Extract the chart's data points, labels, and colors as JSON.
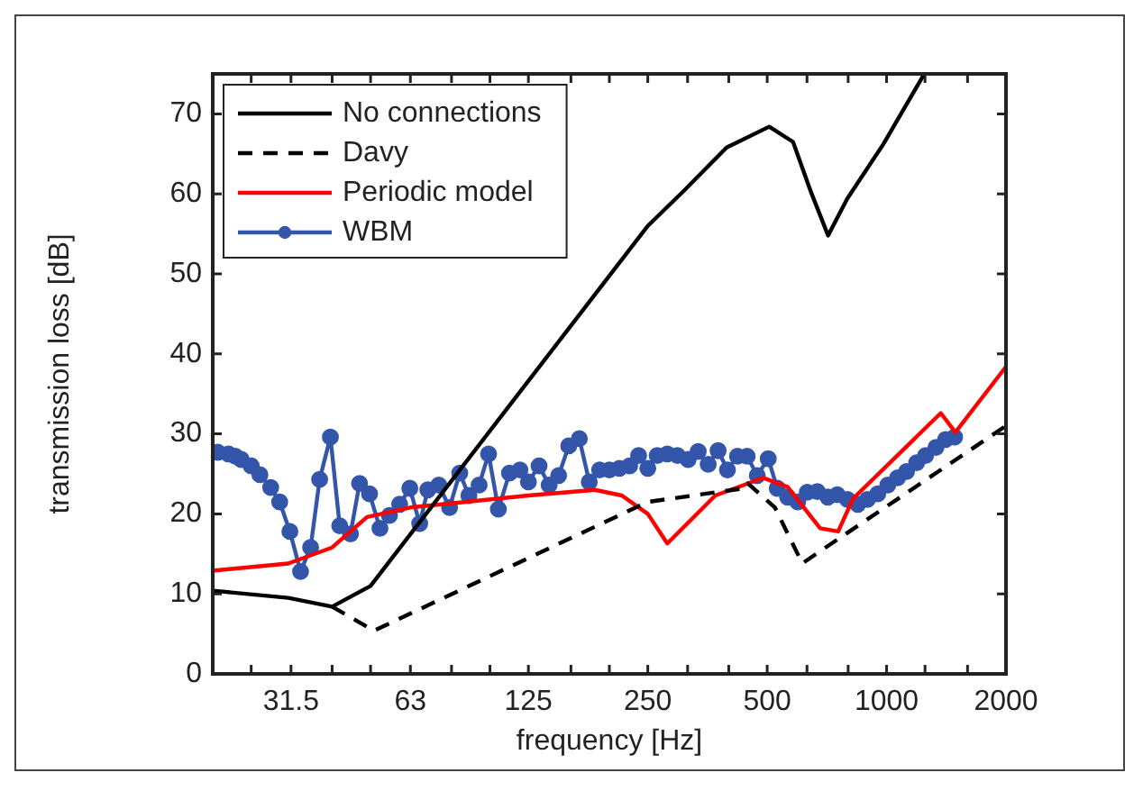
{
  "chart_data": {
    "type": "line",
    "xlabel": "frequency [Hz]",
    "ylabel": "transmission loss [dB]",
    "log": "x",
    "xlim": [
      20,
      2000
    ],
    "ylim": [
      0,
      75
    ],
    "xticks": [
      {
        "value": 25,
        "label": null
      },
      {
        "value": 31.5,
        "label": "31.5"
      },
      {
        "value": 40,
        "label": null
      },
      {
        "value": 50,
        "label": null
      },
      {
        "value": 63,
        "label": "63"
      },
      {
        "value": 80,
        "label": null
      },
      {
        "value": 100,
        "label": null
      },
      {
        "value": 125,
        "label": "125"
      },
      {
        "value": 160,
        "label": null
      },
      {
        "value": 200,
        "label": null
      },
      {
        "value": 250,
        "label": "250"
      },
      {
        "value": 315,
        "label": null
      },
      {
        "value": 400,
        "label": null
      },
      {
        "value": 500,
        "label": "500"
      },
      {
        "value": 630,
        "label": null
      },
      {
        "value": 800,
        "label": null
      },
      {
        "value": 1000,
        "label": "1000"
      },
      {
        "value": 1250,
        "label": null
      },
      {
        "value": 1600,
        "label": null
      },
      {
        "value": 2000,
        "label": "2000"
      }
    ],
    "yticks": [
      0,
      10,
      20,
      30,
      40,
      50,
      60,
      70
    ],
    "grid": false,
    "legend": "top left",
    "series": [
      {
        "name": "No connections",
        "color": "#000000",
        "line_style": "solid",
        "marker": "none",
        "x": [
          20,
          31,
          40,
          50,
          250,
          310,
          395,
          506,
          581,
          645,
          712,
          796,
          981,
          1245
        ],
        "values": [
          10.4,
          9.5,
          8.4,
          11.0,
          56,
          60.5,
          65.8,
          68.4,
          66.5,
          60.2,
          54.8,
          59.4,
          66.2,
          75
        ]
      },
      {
        "name": "Davy",
        "color": "#000000",
        "line_style": "dashed",
        "marker": "none",
        "x": [
          40,
          51,
          250,
          439,
          447,
          523,
          613,
          669,
          2000
        ],
        "values": [
          8.4,
          5.4,
          21.5,
          23.2,
          23.8,
          20.8,
          13.8,
          15.1,
          31
        ]
      },
      {
        "name": "Periodic model",
        "color": "#ff0000",
        "line_style": "solid",
        "marker": "none",
        "x": [
          20,
          31,
          40,
          49,
          63,
          125,
          184,
          215,
          250,
          280,
          370,
          488,
          562,
          680,
          755,
          823,
          1370,
          1491,
          2000
        ],
        "values": [
          12.9,
          13.8,
          15.8,
          19.6,
          20.8,
          22.3,
          23.0,
          22.3,
          20.0,
          16.3,
          22.3,
          24.5,
          23.4,
          18.2,
          17.8,
          21.9,
          32.6,
          30.2,
          38.4
        ]
      },
      {
        "name": "WBM",
        "color": "#3355aa",
        "line_style": "solid",
        "marker": "circle",
        "x": [
          20.6,
          21.9,
          22.8,
          23.6,
          25.0,
          26.3,
          28.0,
          29.5,
          31.3,
          33.3,
          35.3,
          37.2,
          39.6,
          41.8,
          44.5,
          46.9,
          49.7,
          52.8,
          55.8,
          59.2,
          62.8,
          66.5,
          69.7,
          74.3,
          79.1,
          83.9,
          88.5,
          93.9,
          99.2,
          105,
          112,
          119,
          125,
          133,
          141,
          149,
          158,
          168,
          178,
          189,
          200,
          212,
          225,
          237,
          250,
          264,
          280,
          297,
          316,
          335,
          355,
          376,
          397,
          421,
          445,
          472,
          503,
          530,
          563,
          597,
          631,
          669,
          711,
          751,
          797,
          846,
          895,
          950,
          1007,
          1066,
          1123,
          1191,
          1254,
          1332,
          1408,
          1484
        ],
        "values": [
          27.7,
          27.5,
          27.2,
          26.8,
          26.0,
          24.9,
          23.3,
          21.5,
          17.8,
          12.8,
          15.8,
          24.3,
          29.6,
          18.5,
          17.5,
          23.8,
          22.5,
          18.2,
          19.8,
          21.2,
          23.2,
          18.8,
          23.0,
          23.6,
          20.8,
          25.1,
          22.3,
          23.6,
          27.5,
          20.6,
          25.1,
          25.5,
          24.0,
          26.0,
          23.6,
          24.8,
          28.5,
          29.4,
          24.0,
          25.5,
          25.5,
          25.7,
          26.0,
          27.3,
          25.7,
          27.3,
          27.5,
          27.3,
          26.8,
          27.8,
          26.2,
          27.9,
          25.5,
          27.2,
          27.2,
          24.8,
          26.9,
          23.2,
          22.1,
          21.5,
          22.7,
          22.8,
          22.1,
          22.4,
          21.8,
          21.2,
          21.8,
          22.5,
          23.6,
          24.5,
          25.3,
          26.4,
          27.3,
          28.3,
          29.3,
          29.6
        ]
      }
    ]
  }
}
